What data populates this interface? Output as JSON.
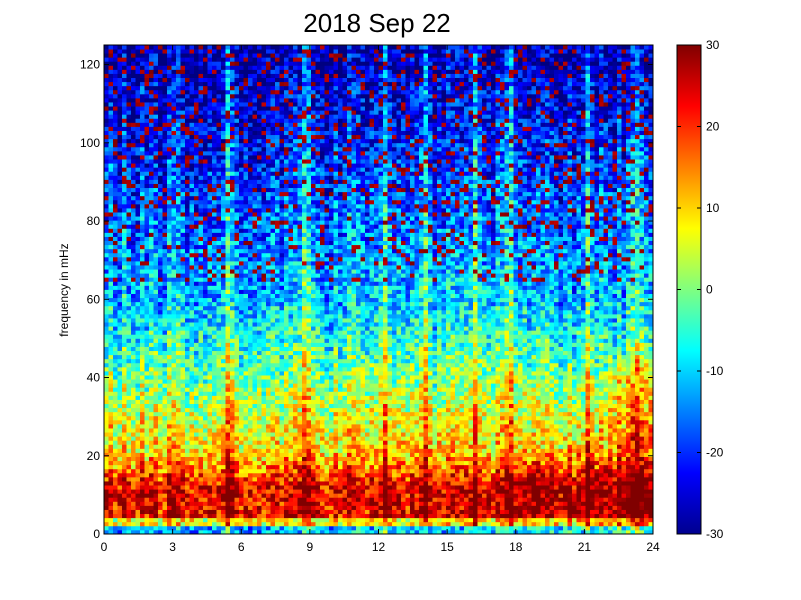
{
  "chart_data": {
    "type": "heatmap",
    "title": "2018 Sep 22",
    "xlabel": "",
    "ylabel": "frequency in mHz",
    "xlim": [
      0,
      24
    ],
    "ylim": [
      0,
      125
    ],
    "xticks": [
      0,
      3,
      6,
      9,
      12,
      15,
      18,
      21,
      24
    ],
    "yticks": [
      0,
      20,
      40,
      60,
      80,
      100,
      120
    ],
    "colorbar": {
      "range": [
        -30,
        30
      ],
      "ticks": [
        30,
        20,
        10,
        0,
        -10,
        -20,
        -30
      ],
      "colormap": "jet"
    },
    "grid": false,
    "features": {
      "low_frequency_band": {
        "freq_range": [
          0,
          15
        ],
        "approx_value": 25
      },
      "mid_frequency_band": {
        "freq_range": [
          20,
          60
        ],
        "approx_value": 0
      },
      "high_frequency_band": {
        "freq_range": [
          70,
          125
        ],
        "approx_value": -25
      },
      "vertical_streaks_hours": [
        5.5,
        8.8,
        12.3,
        14.1,
        16.2,
        17.8,
        21.2,
        23.3
      ]
    }
  }
}
